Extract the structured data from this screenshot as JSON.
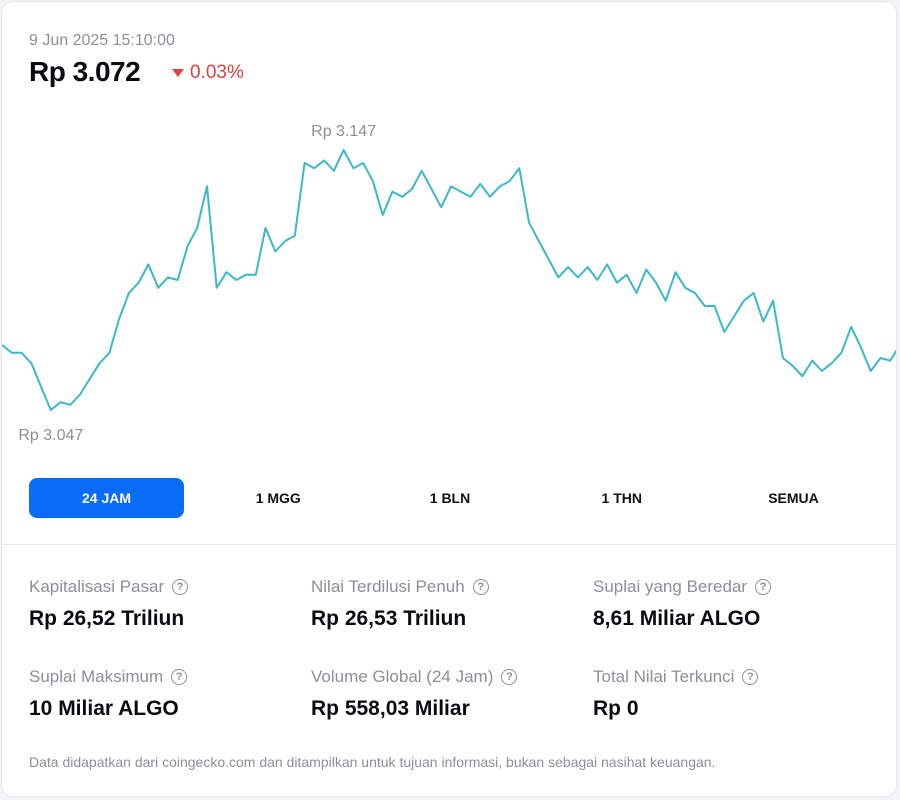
{
  "header": {
    "date": "9 Jun 2025 15:10:00",
    "price": "Rp 3.072",
    "change": "0.03%"
  },
  "chart_data": {
    "type": "line",
    "color": "#3bb8c9",
    "values": [
      3072,
      3069,
      3069,
      3065,
      3056,
      3047,
      3050,
      3049,
      3053,
      3059,
      3065,
      3069,
      3082,
      3092,
      3096,
      3103,
      3094,
      3098,
      3097,
      3110,
      3117,
      3133,
      3094,
      3100,
      3097,
      3099,
      3099,
      3117,
      3108,
      3112,
      3114,
      3142,
      3140,
      3143,
      3139,
      3147,
      3140,
      3142,
      3135,
      3122,
      3131,
      3129,
      3132,
      3139,
      3132,
      3125,
      3133,
      3131,
      3129,
      3134,
      3129,
      3133,
      3135,
      3140,
      3119,
      3112,
      3105,
      3098,
      3102,
      3098,
      3102,
      3097,
      3103,
      3096,
      3099,
      3092,
      3101,
      3096,
      3089,
      3100,
      3094,
      3092,
      3087,
      3087,
      3077,
      3083,
      3089,
      3092,
      3081,
      3089,
      3067,
      3064,
      3060,
      3066,
      3062,
      3065,
      3069,
      3079,
      3071,
      3062,
      3067,
      3066,
      3072
    ],
    "annotations": [
      {
        "text": "Rp 3.147",
        "value": 3147
      },
      {
        "text": "Rp 3.047",
        "value": 3047
      }
    ]
  },
  "tabs": [
    "24 JAM",
    "1 MGG",
    "1 BLN",
    "1 THN",
    "SEMUA"
  ],
  "active_tab": 0,
  "stats": [
    {
      "label": "Kapitalisasi Pasar",
      "value": "Rp 26,52 Triliun"
    },
    {
      "label": "Nilai Terdilusi Penuh",
      "value": "Rp 26,53 Triliun"
    },
    {
      "label": "Suplai yang Beredar",
      "value": "8,61 Miliar ALGO"
    },
    {
      "label": "Suplai Maksimum",
      "value": "10 Miliar ALGO"
    },
    {
      "label": "Volume Global (24 Jam)",
      "value": "Rp 558,03 Miliar"
    },
    {
      "label": "Total Nilai Terkunci",
      "value": "Rp 0"
    }
  ],
  "footer": "Data didapatkan dari coingecko.com dan ditampilkan untuk tujuan informasi, bukan sebagai nasihat keuangan."
}
